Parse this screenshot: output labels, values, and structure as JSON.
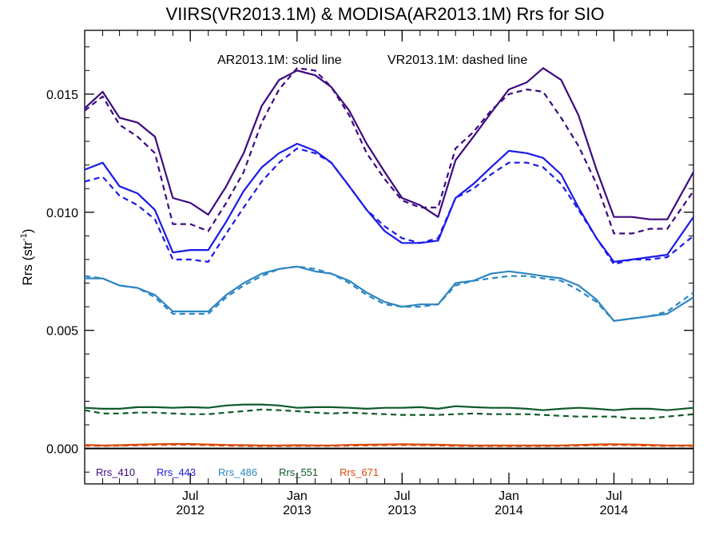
{
  "chart_data": {
    "type": "line",
    "title": "VIIRS(VR2013.1M) & MODISA(AR2013.1M)  Rrs for SIO",
    "annotation": {
      "solid_text": "AR2013.1M: solid line",
      "dashed_text": "VR2013.1M: dashed line"
    },
    "ylabel": {
      "base": "Rrs (str",
      "sup": "-1",
      "end": ")"
    },
    "ylim": [
      -0.0015,
      0.0177
    ],
    "y_ticks": [
      0.0,
      0.005,
      0.01,
      0.015
    ],
    "y_tick_labels": [
      "0.000",
      "0.005",
      "0.010",
      "0.015"
    ],
    "x_range": [
      "2012-01-01",
      "2014-11-15"
    ],
    "x_ticks": [
      {
        "date": "2012-07-01",
        "month": "Jul",
        "year": "2012"
      },
      {
        "date": "2013-01-01",
        "month": "Jan",
        "year": "2013"
      },
      {
        "date": "2013-07-01",
        "month": "Jul",
        "year": "2013"
      },
      {
        "date": "2014-01-01",
        "month": "Jan",
        "year": "2014"
      },
      {
        "date": "2014-07-01",
        "month": "Jul",
        "year": "2014"
      }
    ],
    "x": [
      "2012-01-01",
      "2012-02-01",
      "2012-03-01",
      "2012-04-01",
      "2012-05-01",
      "2012-06-01",
      "2012-07-01",
      "2012-08-01",
      "2012-09-01",
      "2012-10-01",
      "2012-11-01",
      "2012-12-01",
      "2013-01-01",
      "2013-02-01",
      "2013-03-01",
      "2013-04-01",
      "2013-05-01",
      "2013-06-01",
      "2013-07-01",
      "2013-08-01",
      "2013-09-01",
      "2013-10-01",
      "2013-11-01",
      "2013-12-01",
      "2014-01-01",
      "2014-02-01",
      "2014-03-01",
      "2014-04-01",
      "2014-05-01",
      "2014-06-01",
      "2014-07-01",
      "2014-08-01",
      "2014-09-01",
      "2014-10-01",
      "2014-11-15"
    ],
    "series": [
      {
        "name": "Rrs_410",
        "sensor": "AR2013.1M",
        "style": "solid",
        "color": "#3d0a80",
        "values": [
          0.0144,
          0.0151,
          0.014,
          0.0138,
          0.0132,
          0.0106,
          0.0104,
          0.0099,
          0.0111,
          0.0125,
          0.0145,
          0.0156,
          0.016,
          0.0158,
          0.0153,
          0.0143,
          0.0129,
          0.0117,
          0.0106,
          0.0103,
          0.0098,
          0.0122,
          0.0132,
          0.0142,
          0.0152,
          0.0155,
          0.0161,
          0.0156,
          0.0141,
          0.0118,
          0.0098,
          0.0098,
          0.0097,
          0.0097,
          0.0117
        ]
      },
      {
        "name": "Rrs_410",
        "sensor": "VR2013.1M",
        "style": "dashed",
        "color": "#3d0a80",
        "values": [
          0.0143,
          0.0149,
          0.0137,
          0.0132,
          0.0125,
          0.0095,
          0.0095,
          0.0092,
          0.0104,
          0.0117,
          0.0138,
          0.0152,
          0.0161,
          0.016,
          0.0153,
          0.0141,
          0.0125,
          0.0114,
          0.0105,
          0.0102,
          0.0102,
          0.0127,
          0.0134,
          0.0143,
          0.015,
          0.0152,
          0.0151,
          0.014,
          0.0128,
          0.0112,
          0.0091,
          0.0091,
          0.0093,
          0.0093,
          0.0109
        ]
      },
      {
        "name": "Rrs_443",
        "sensor": "AR2013.1M",
        "style": "solid",
        "color": "#1b1be8",
        "values": [
          0.0118,
          0.0121,
          0.0111,
          0.0108,
          0.0101,
          0.0083,
          0.0084,
          0.0084,
          0.0096,
          0.0109,
          0.0119,
          0.0125,
          0.0129,
          0.0126,
          0.0121,
          0.0111,
          0.0101,
          0.0092,
          0.0087,
          0.0087,
          0.0088,
          0.0106,
          0.0112,
          0.0119,
          0.0126,
          0.0125,
          0.0123,
          0.0116,
          0.0102,
          0.0089,
          0.0079,
          0.008,
          0.0081,
          0.0082,
          0.0098
        ]
      },
      {
        "name": "Rrs_443",
        "sensor": "VR2013.1M",
        "style": "dashed",
        "color": "#1b1be8",
        "values": [
          0.0113,
          0.0115,
          0.0107,
          0.0103,
          0.0097,
          0.008,
          0.008,
          0.0079,
          0.0091,
          0.0102,
          0.0113,
          0.0121,
          0.0127,
          0.0125,
          0.0121,
          0.0111,
          0.0101,
          0.0094,
          0.0089,
          0.0087,
          0.0089,
          0.0106,
          0.011,
          0.0116,
          0.0121,
          0.0121,
          0.0119,
          0.0112,
          0.0101,
          0.0089,
          0.0078,
          0.008,
          0.008,
          0.0081,
          0.009
        ]
      },
      {
        "name": "Rrs_486",
        "sensor": "AR2013.1M",
        "style": "solid",
        "color": "#2e86c1",
        "values": [
          0.0072,
          0.0072,
          0.0069,
          0.0068,
          0.0065,
          0.0058,
          0.0058,
          0.0058,
          0.0065,
          0.007,
          0.0074,
          0.0076,
          0.0077,
          0.0075,
          0.0074,
          0.0071,
          0.0066,
          0.0062,
          0.006,
          0.0061,
          0.0061,
          0.007,
          0.0071,
          0.0074,
          0.0075,
          0.0074,
          0.0073,
          0.0072,
          0.0069,
          0.0063,
          0.0054,
          0.0055,
          0.0056,
          0.0057,
          0.0064
        ]
      },
      {
        "name": "Rrs_486",
        "sensor": "VR2013.1M",
        "style": "dashed",
        "color": "#2e86c1",
        "values": [
          0.0073,
          0.0072,
          0.0069,
          0.0068,
          0.0064,
          0.0057,
          0.0057,
          0.0057,
          0.0064,
          0.0069,
          0.0073,
          0.0076,
          0.0077,
          0.0076,
          0.0074,
          0.007,
          0.0065,
          0.0061,
          0.006,
          0.006,
          0.0061,
          0.0069,
          0.0071,
          0.0072,
          0.0073,
          0.0073,
          0.0072,
          0.0071,
          0.0067,
          0.0062,
          0.0054,
          0.0055,
          0.0056,
          0.0058,
          0.0066
        ]
      },
      {
        "name": "Rrs_551",
        "sensor": "AR2013.1M",
        "style": "solid",
        "color": "#0e5a2a",
        "values": [
          0.00172,
          0.00168,
          0.00168,
          0.00175,
          0.00175,
          0.00172,
          0.00175,
          0.00172,
          0.00182,
          0.00186,
          0.00186,
          0.00182,
          0.00172,
          0.00175,
          0.00175,
          0.00172,
          0.00168,
          0.00172,
          0.00172,
          0.00175,
          0.00168,
          0.00179,
          0.00175,
          0.00172,
          0.00172,
          0.00168,
          0.00162,
          0.00168,
          0.00172,
          0.00168,
          0.00162,
          0.00168,
          0.00168,
          0.00162,
          0.00172
        ]
      },
      {
        "name": "Rrs_551",
        "sensor": "VR2013.1M",
        "style": "dashed",
        "color": "#0e5a2a",
        "values": [
          0.00162,
          0.00148,
          0.00148,
          0.00152,
          0.00152,
          0.00148,
          0.00145,
          0.00145,
          0.00152,
          0.00158,
          0.00165,
          0.00162,
          0.00158,
          0.00152,
          0.00148,
          0.00152,
          0.00148,
          0.00145,
          0.00142,
          0.00142,
          0.00142,
          0.00145,
          0.00148,
          0.00145,
          0.00145,
          0.00145,
          0.00142,
          0.00138,
          0.00135,
          0.00135,
          0.00135,
          0.00128,
          0.00128,
          0.00135,
          0.00145
        ]
      },
      {
        "name": "Rrs_671",
        "sensor": "AR2013.1M",
        "style": "solid",
        "color": "#d94a0c",
        "values": [
          0.00015,
          0.00013,
          0.00014,
          0.00016,
          0.00018,
          0.00019,
          0.00019,
          0.00017,
          0.00015,
          0.00014,
          0.00013,
          0.00013,
          0.00014,
          0.00013,
          0.00013,
          0.00015,
          0.00016,
          0.00017,
          0.00018,
          0.00017,
          0.00016,
          0.00014,
          0.00013,
          0.00013,
          0.00013,
          0.00013,
          0.00013,
          0.00013,
          0.00015,
          0.00017,
          0.00018,
          0.00017,
          0.00015,
          0.00013,
          0.00013
        ]
      },
      {
        "name": "Rrs_671",
        "sensor": "VR2013.1M",
        "style": "dashed",
        "color": "#d94a0c",
        "values": [
          0.00012,
          0.00011,
          0.00012,
          0.00013,
          0.00015,
          0.00016,
          0.00016,
          0.00014,
          0.00012,
          0.00011,
          0.0001,
          0.0001,
          0.00011,
          0.00011,
          0.00011,
          0.00012,
          0.00013,
          0.00014,
          0.00015,
          0.00014,
          0.00013,
          0.00011,
          0.0001,
          0.0001,
          0.0001,
          0.0001,
          0.0001,
          0.00011,
          0.00012,
          0.00014,
          0.00015,
          0.00014,
          0.00012,
          0.00011,
          0.00011
        ]
      }
    ],
    "legend": [
      {
        "label": "Rrs_410",
        "color": "#3d0a80"
      },
      {
        "label": "Rrs_443",
        "color": "#1b1be8"
      },
      {
        "label": "Rrs_486",
        "color": "#2e86c1"
      },
      {
        "label": "Rrs_551",
        "color": "#0e5a2a"
      },
      {
        "label": "Rrs_671",
        "color": "#d94a0c"
      }
    ],
    "legend_placement": "bottom-left inside plot",
    "zero_line": true,
    "grid": false
  }
}
